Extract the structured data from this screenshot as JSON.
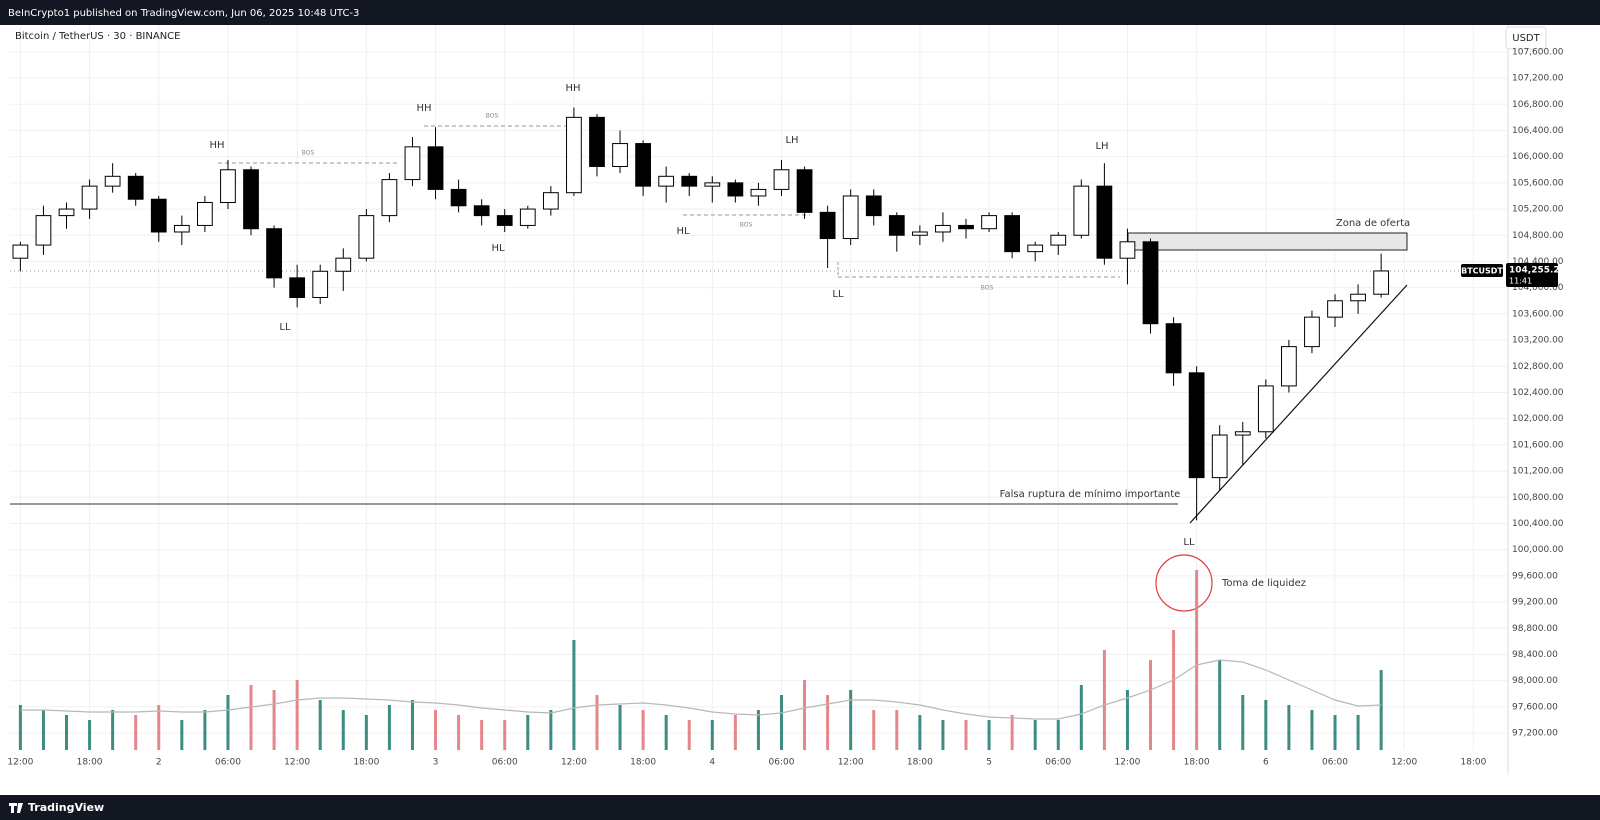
{
  "header": "BeInCrypto1 published on TradingView.com, Jun 06, 2025 10:48 UTC-3",
  "footer": "TradingView",
  "chart_data": {
    "type": "candlestick",
    "title": "Bitcoin / TetherUS · 30 · BINANCE",
    "currency": "USDT",
    "symbol_tag": "BTCUSDT",
    "last_price": {
      "value": 104255.2,
      "label": "104,255.20"
    },
    "countdown": "11:41",
    "x": [
      0,
      2,
      4,
      6,
      8,
      10,
      12,
      14,
      16,
      18,
      20,
      22,
      24,
      26,
      28,
      30,
      32,
      34,
      36,
      38,
      40,
      42,
      44,
      46,
      48,
      50,
      52,
      54,
      56,
      58,
      60,
      62,
      64,
      66,
      68,
      70,
      72,
      74,
      76,
      78,
      80,
      82,
      84,
      86,
      88,
      90,
      92,
      94,
      96,
      98,
      100,
      102,
      104,
      106,
      108,
      110,
      112,
      114,
      116,
      118
    ],
    "open": [
      104450,
      104650,
      105100,
      105200,
      105550,
      105700,
      105350,
      104850,
      104950,
      105300,
      105800,
      104900,
      104150,
      103850,
      104250,
      104450,
      105100,
      105650,
      106150,
      105500,
      105250,
      105100,
      104950,
      105200,
      105450,
      106600,
      105850,
      106200,
      105550,
      105700,
      105550,
      105600,
      105400,
      105500,
      105800,
      105150,
      104750,
      105400,
      105100,
      104800,
      104850,
      104950,
      104900,
      105100,
      104550,
      104650,
      104800,
      105550,
      104450,
      104700,
      103450,
      102700,
      101100,
      101750,
      101800,
      102500,
      103100,
      103550,
      103800,
      103900
    ],
    "high": [
      104700,
      105250,
      105300,
      105650,
      105900,
      105750,
      105400,
      105100,
      105400,
      105950,
      105850,
      104950,
      104350,
      104350,
      104600,
      105200,
      105750,
      106300,
      106450,
      105650,
      105350,
      105200,
      105250,
      105550,
      106750,
      106650,
      106400,
      106250,
      105850,
      105750,
      105700,
      105650,
      105600,
      105950,
      105850,
      105250,
      105500,
      105500,
      105150,
      104950,
      105150,
      105050,
      105150,
      105150,
      104700,
      104850,
      105650,
      105900,
      104900,
      104750,
      103550,
      102800,
      101900,
      101950,
      102600,
      103200,
      103650,
      103900,
      104050,
      104520
    ],
    "low": [
      104250,
      104500,
      104900,
      105050,
      105450,
      105250,
      104700,
      104650,
      104850,
      105200,
      104800,
      104000,
      103700,
      103750,
      103950,
      104400,
      105000,
      105550,
      105350,
      105150,
      104950,
      104850,
      104900,
      105100,
      105400,
      105700,
      105750,
      105400,
      105300,
      105400,
      105300,
      105300,
      105250,
      105400,
      105050,
      104300,
      104650,
      104950,
      104550,
      104650,
      104700,
      104750,
      104850,
      104450,
      104400,
      104500,
      104750,
      104350,
      104050,
      103300,
      102500,
      100450,
      100900,
      101300,
      101700,
      102400,
      103000,
      103400,
      103600,
      103850
    ],
    "close": [
      104650,
      105100,
      105200,
      105550,
      105700,
      105350,
      104850,
      104950,
      105300,
      105800,
      104900,
      104150,
      103850,
      104250,
      104450,
      105100,
      105650,
      106150,
      105500,
      105250,
      105100,
      104950,
      105200,
      105450,
      106600,
      105850,
      106200,
      105550,
      105700,
      105550,
      105600,
      105400,
      105500,
      105800,
      105150,
      104750,
      105400,
      105100,
      104800,
      104850,
      104950,
      104900,
      105100,
      104550,
      104650,
      104800,
      105550,
      104450,
      104700,
      103450,
      102700,
      101100,
      101750,
      101800,
      102500,
      103100,
      103550,
      103800,
      103900,
      104255.2
    ],
    "volume": [
      45,
      40,
      35,
      30,
      40,
      35,
      45,
      30,
      40,
      55,
      65,
      60,
      70,
      50,
      40,
      35,
      45,
      50,
      40,
      35,
      30,
      30,
      35,
      40,
      110,
      55,
      45,
      40,
      35,
      30,
      30,
      35,
      40,
      55,
      70,
      55,
      60,
      40,
      40,
      35,
      30,
      30,
      30,
      35,
      30,
      30,
      65,
      100,
      60,
      90,
      120,
      180,
      90,
      55,
      50,
      45,
      40,
      35,
      35,
      80
    ],
    "volume_ma": [
      40,
      40,
      39,
      38,
      38,
      38,
      39,
      38,
      38,
      40,
      43,
      46,
      50,
      52,
      52,
      51,
      50,
      48,
      47,
      45,
      42,
      40,
      38,
      37,
      42,
      45,
      46,
      47,
      45,
      42,
      38,
      36,
      35,
      37,
      42,
      46,
      50,
      50,
      48,
      45,
      40,
      36,
      33,
      32,
      31,
      31,
      36,
      45,
      52,
      60,
      70,
      85,
      90,
      88,
      80,
      70,
      60,
      50,
      44,
      45
    ],
    "up_color": "#ffffff",
    "down_color": "#000000",
    "wick_color": "#000000",
    "volume_up_color": "#3c8c80",
    "volume_down_color": "#e4868a",
    "volume_ma_color": "#b8b8b8",
    "xlim": [
      -0.9,
      129
    ],
    "ylim": [
      96560,
      108010
    ],
    "grid": true,
    "xticks": [
      {
        "value": 0,
        "label": "12:00"
      },
      {
        "value": 6,
        "label": "18:00"
      },
      {
        "value": 12,
        "label": "2"
      },
      {
        "value": 18,
        "label": "06:00"
      },
      {
        "value": 24,
        "label": "12:00"
      },
      {
        "value": 30,
        "label": "18:00"
      },
      {
        "value": 36,
        "label": "3"
      },
      {
        "value": 42,
        "label": "06:00"
      },
      {
        "value": 48,
        "label": "12:00"
      },
      {
        "value": 54,
        "label": "18:00"
      },
      {
        "value": 60,
        "label": "4"
      },
      {
        "value": 66,
        "label": "06:00"
      },
      {
        "value": 72,
        "label": "12:00"
      },
      {
        "value": 78,
        "label": "18:00"
      },
      {
        "value": 84,
        "label": "5"
      },
      {
        "value": 90,
        "label": "06:00"
      },
      {
        "value": 96,
        "label": "12:00"
      },
      {
        "value": 102,
        "label": "18:00"
      },
      {
        "value": 108,
        "label": "6"
      },
      {
        "value": 114,
        "label": "06:00"
      },
      {
        "value": 120,
        "label": "12:00"
      },
      {
        "value": 126,
        "label": "18:00"
      }
    ],
    "yticks": [
      {
        "value": 97200,
        "label": "97,200.00"
      },
      {
        "value": 97600,
        "label": "97,600.00"
      },
      {
        "value": 98000,
        "label": "98,000.00"
      },
      {
        "value": 98400,
        "label": "98,400.00"
      },
      {
        "value": 98800,
        "label": "98,800.00"
      },
      {
        "value": 99200,
        "label": "99,200.00"
      },
      {
        "value": 99600,
        "label": "99,600.00"
      },
      {
        "value": 100000,
        "label": "100,000.00"
      },
      {
        "value": 100400,
        "label": "100,400.00"
      },
      {
        "value": 100800,
        "label": "100,800.00"
      },
      {
        "value": 101200,
        "label": "101,200.00"
      },
      {
        "value": 101600,
        "label": "101,600.00"
      },
      {
        "value": 102000,
        "label": "102,000.00"
      },
      {
        "value": 102400,
        "label": "102,400.00"
      },
      {
        "value": 102800,
        "label": "102,800.00"
      },
      {
        "value": 103200,
        "label": "103,200.00"
      },
      {
        "value": 103600,
        "label": "103,600.00"
      },
      {
        "value": 104000,
        "label": "104,000.00"
      },
      {
        "value": 104400,
        "label": "104,400.00"
      },
      {
        "value": 104800,
        "label": "104,800.00"
      },
      {
        "value": 105200,
        "label": "105,200.00"
      },
      {
        "value": 105600,
        "label": "105,600.00"
      },
      {
        "value": 106000,
        "label": "106,000.00"
      },
      {
        "value": 106400,
        "label": "106,400.00"
      },
      {
        "value": 106800,
        "label": "106,800.00"
      },
      {
        "value": 107200,
        "label": "107,200.00"
      },
      {
        "value": 107600,
        "label": "107,600.00"
      }
    ],
    "annotations": [
      "HH",
      "HH",
      "HH",
      "LL",
      "HL",
      "HL",
      "LH",
      "LL",
      "LH",
      "LL",
      "BOS",
      "BOS",
      "BOS",
      "BOS",
      "Zona de oferta",
      "Falsa ruptura de mínimo importante",
      "Toma de liquidez"
    ]
  }
}
